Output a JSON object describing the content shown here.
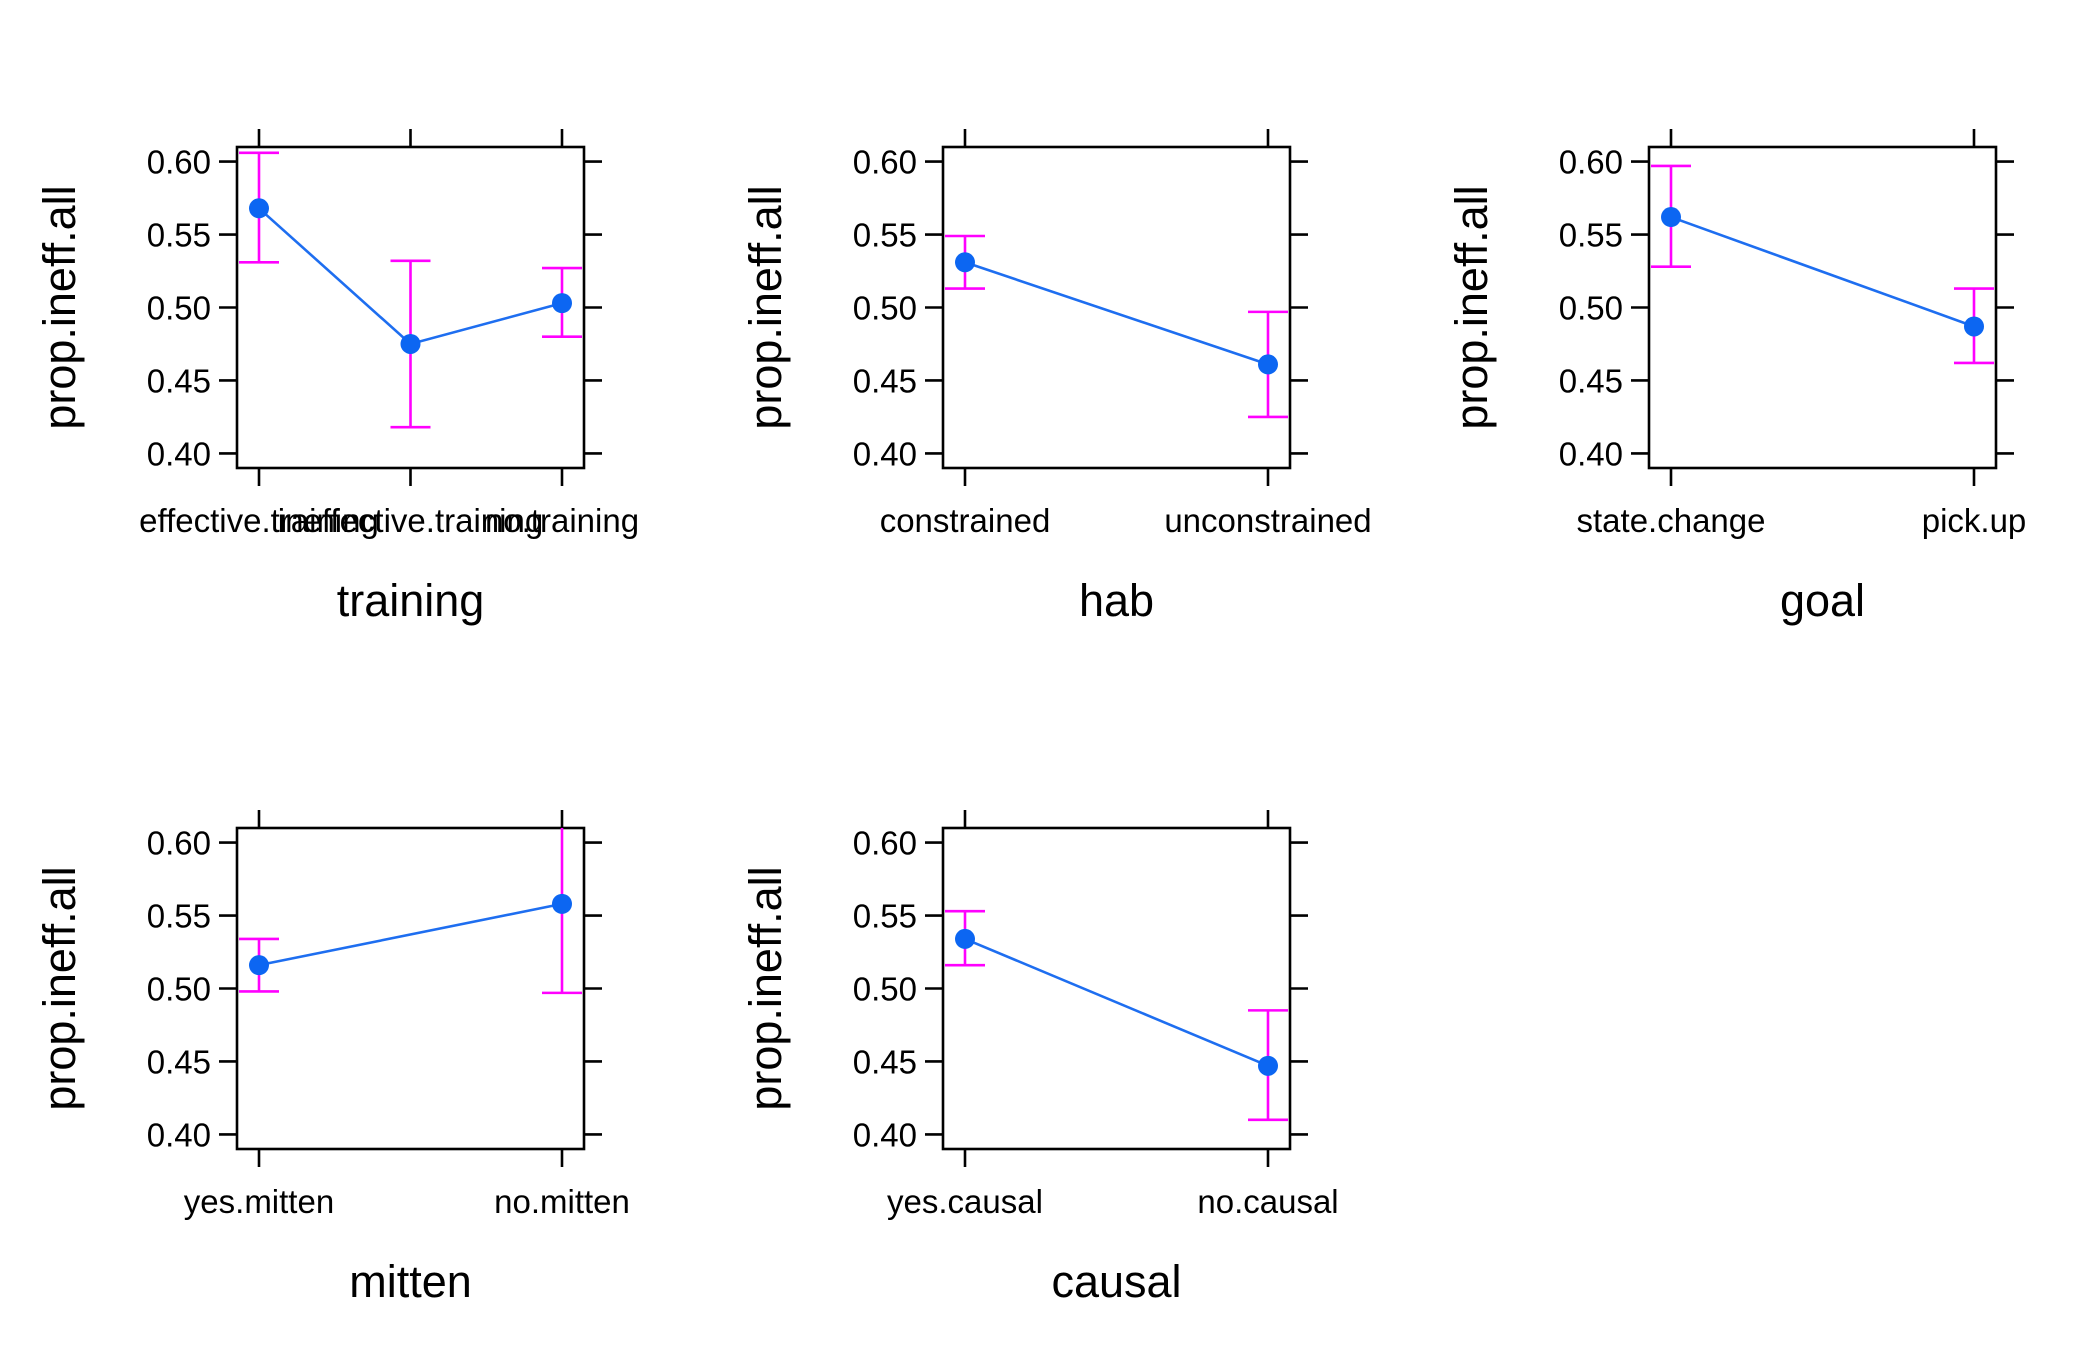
{
  "colors": {
    "line": "#1e6ef0",
    "point": "#0c66f2",
    "errorbar": "#ff00ff",
    "axis": "#000000",
    "background": "#ffffff"
  },
  "chart_data": [
    {
      "type": "line",
      "xlabel": "training",
      "ylabel": "prop.ineff.all",
      "categories": [
        "effective.training",
        "ineffective.training",
        "no.training"
      ],
      "values": [
        0.568,
        0.475,
        0.503
      ],
      "lower": [
        0.531,
        0.418,
        0.48
      ],
      "upper": [
        0.606,
        0.532,
        0.527
      ],
      "ylim": [
        0.39,
        0.61
      ],
      "yticks": [
        "0.40",
        "0.45",
        "0.50",
        "0.55",
        "0.60"
      ],
      "grid": false
    },
    {
      "type": "line",
      "xlabel": "hab",
      "ylabel": "prop.ineff.all",
      "categories": [
        "constrained",
        "unconstrained"
      ],
      "values": [
        0.531,
        0.461
      ],
      "lower": [
        0.513,
        0.425
      ],
      "upper": [
        0.549,
        0.497
      ],
      "ylim": [
        0.39,
        0.61
      ],
      "yticks": [
        "0.40",
        "0.45",
        "0.50",
        "0.55",
        "0.60"
      ],
      "grid": false
    },
    {
      "type": "line",
      "xlabel": "goal",
      "ylabel": "prop.ineff.all",
      "categories": [
        "state.change",
        "pick.up"
      ],
      "values": [
        0.562,
        0.487
      ],
      "lower": [
        0.528,
        0.462
      ],
      "upper": [
        0.597,
        0.513
      ],
      "ylim": [
        0.39,
        0.61
      ],
      "yticks": [
        "0.40",
        "0.45",
        "0.50",
        "0.55",
        "0.60"
      ],
      "grid": false
    },
    {
      "type": "line",
      "xlabel": "mitten",
      "ylabel": "prop.ineff.all",
      "categories": [
        "yes.mitten",
        "no.mitten"
      ],
      "values": [
        0.516,
        0.558
      ],
      "lower": [
        0.498,
        0.497
      ],
      "upper": [
        0.534,
        0.62
      ],
      "ylim": [
        0.39,
        0.61
      ],
      "yticks": [
        "0.40",
        "0.45",
        "0.50",
        "0.55",
        "0.60"
      ],
      "grid": false
    },
    {
      "type": "line",
      "xlabel": "causal",
      "ylabel": "prop.ineff.all",
      "categories": [
        "yes.causal",
        "no.causal"
      ],
      "values": [
        0.534,
        0.447
      ],
      "lower": [
        0.516,
        0.41
      ],
      "upper": [
        0.553,
        0.485
      ],
      "ylim": [
        0.39,
        0.61
      ],
      "yticks": [
        "0.40",
        "0.45",
        "0.50",
        "0.55",
        "0.60"
      ],
      "grid": false
    }
  ]
}
